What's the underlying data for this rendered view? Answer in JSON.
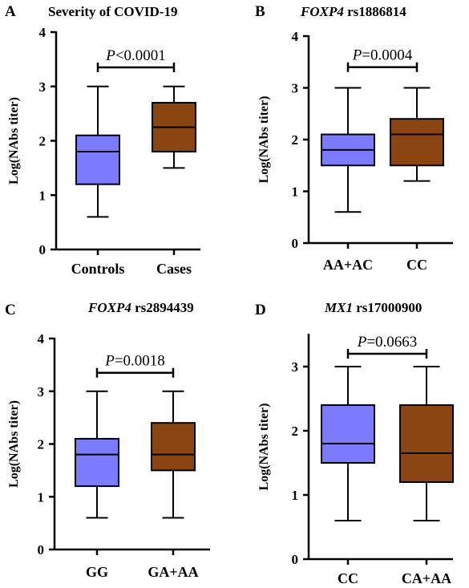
{
  "colors": {
    "group1": "#7b7bff",
    "group2": "#8b4513"
  },
  "chart_data": [
    {
      "type": "box",
      "panel": "A",
      "title_parts": [
        {
          "text": "Severity of COVID-19",
          "italic": false
        }
      ],
      "ylabel": "Log(NAbs titer)",
      "ylim": [
        0,
        4
      ],
      "yticks": [
        "0",
        "1",
        "2",
        "3",
        "4"
      ],
      "categories": [
        "Controls",
        "Cases"
      ],
      "boxes": [
        {
          "min": 0.6,
          "q1": 1.2,
          "median": 1.8,
          "q3": 2.1,
          "max": 3.0
        },
        {
          "min": 1.5,
          "q1": 1.8,
          "median": 2.25,
          "q3": 2.7,
          "max": 3.0
        }
      ],
      "pvalue": {
        "prefix": "P",
        "text": "<0.0001",
        "bracket_y": 3.35
      }
    },
    {
      "type": "box",
      "panel": "B",
      "title_parts": [
        {
          "text": "FOXP4",
          "italic": true
        },
        {
          "text": " rs1886814",
          "italic": false
        }
      ],
      "ylabel": "Log(NAbs titer)",
      "ylim": [
        0,
        4
      ],
      "yticks": [
        "0",
        "1",
        "2",
        "3",
        "4"
      ],
      "categories": [
        "AA+AC",
        "CC"
      ],
      "boxes": [
        {
          "min": 0.6,
          "q1": 1.5,
          "median": 1.8,
          "q3": 2.1,
          "max": 3.0
        },
        {
          "min": 1.2,
          "q1": 1.5,
          "median": 2.1,
          "q3": 2.4,
          "max": 3.0
        }
      ],
      "pvalue": {
        "prefix": "P",
        "text": "=0.0004",
        "bracket_y": 3.4
      }
    },
    {
      "type": "box",
      "panel": "C",
      "title_parts": [
        {
          "text": "FOXP4",
          "italic": true
        },
        {
          "text": " rs2894439",
          "italic": false
        }
      ],
      "ylabel": "Log(NAbs titer)",
      "ylim": [
        0,
        4
      ],
      "yticks": [
        "0",
        "1",
        "2",
        "3",
        "4"
      ],
      "categories": [
        "GG",
        "GA+AA"
      ],
      "boxes": [
        {
          "min": 0.6,
          "q1": 1.2,
          "median": 1.8,
          "q3": 2.1,
          "max": 3.0
        },
        {
          "min": 0.6,
          "q1": 1.5,
          "median": 1.8,
          "q3": 2.4,
          "max": 3.0
        }
      ],
      "pvalue": {
        "prefix": "P",
        "text": "=0.0018",
        "bracket_y": 3.35
      }
    },
    {
      "type": "box",
      "panel": "D",
      "title_parts": [
        {
          "text": "MX1",
          "italic": true
        },
        {
          "text": " rs17000900",
          "italic": false
        }
      ],
      "ylabel": "Log(NAbs titer)",
      "ylim": [
        0,
        3.5
      ],
      "yticks": [
        "0",
        "1",
        "2",
        "3"
      ],
      "categories": [
        "CC",
        "CA+AA"
      ],
      "boxes": [
        {
          "min": 0.6,
          "q1": 1.5,
          "median": 1.8,
          "q3": 2.4,
          "max": 3.0
        },
        {
          "min": 0.6,
          "q1": 1.2,
          "median": 1.65,
          "q3": 2.4,
          "max": 3.0
        }
      ],
      "pvalue": {
        "prefix": "P",
        "text": "=0.0663",
        "bracket_y": 3.2
      }
    }
  ]
}
